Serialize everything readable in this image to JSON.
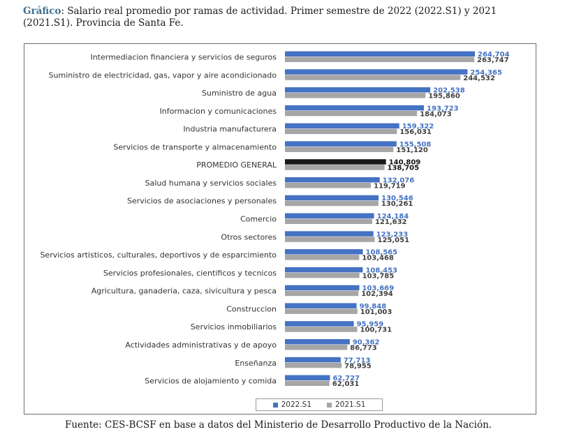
{
  "caption": {
    "lead": "Gráfico",
    "text": ": Salario real promedio por ramas de actividad. Primer semestre de 2022 (2022.S1) y 2021 (2021.S1). Provincia de Santa Fe."
  },
  "source": "Fuente: CES-BCSF en base a datos del Ministerio de Desarrollo Productivo de la Nación.",
  "legend": [
    {
      "label": "2022.S1",
      "color": "#4472c4"
    },
    {
      "label": "2021.S1",
      "color": "#a6a6a6"
    }
  ],
  "chart_data": {
    "type": "bar",
    "orientation": "horizontal",
    "title": "",
    "xlabel": "",
    "ylabel": "",
    "xlim": [
      0,
      280000
    ],
    "grid": false,
    "legend_position": "bottom",
    "highlight": "PROMEDIO GENERAL",
    "highlight_color": "#1a1a1a",
    "categories": [
      "Intermediacion financiera y servicios de seguros",
      "Suministro de electricidad, gas, vapor y aire acondicionado",
      "Suministro de agua",
      "Informacion y comunicaciones",
      "Industria manufacturera",
      "Servicios de transporte y almacenamiento",
      "PROMEDIO GENERAL",
      "Salud humana y servicios sociales",
      "Servicios de asociaciones y personales",
      "Comercio",
      "Otros sectores",
      "Servicios artisticos, culturales, deportivos y de esparcimiento",
      "Servicios profesionales, cientificos y tecnicos",
      "Agricultura, ganaderia, caza, sivicultura y pesca",
      "Construccion",
      "Servicios inmobiliarios",
      "Actividades administrativas y de apoyo",
      "Enseñanza",
      "Servicios de alojamiento y comida"
    ],
    "series": [
      {
        "name": "2022.S1",
        "color": "#4472c4",
        "values": [
          264704,
          254365,
          202538,
          193723,
          159322,
          155508,
          140809,
          132076,
          130546,
          124184,
          123233,
          108565,
          108453,
          103669,
          99848,
          95959,
          90362,
          77713,
          62727
        ],
        "labels": [
          "264,704",
          "254,365",
          "202,538",
          "193,723",
          "159,322",
          "155,508",
          "140,809",
          "132,076",
          "130,546",
          "124,184",
          "123,233",
          "108,565",
          "108,453",
          "103,669",
          "99,848",
          "95,959",
          "90,362",
          "77,713",
          "62,727"
        ]
      },
      {
        "name": "2021.S1",
        "color": "#a6a6a6",
        "values": [
          263747,
          244532,
          195860,
          184073,
          156031,
          151120,
          138705,
          119719,
          130261,
          121632,
          125051,
          103468,
          103785,
          102394,
          101003,
          100731,
          86773,
          78955,
          62031
        ],
        "labels": [
          "263,747",
          "244,532",
          "195,860",
          "184,073",
          "156,031",
          "151,120",
          "138,705",
          "119,719",
          "130,261",
          "121,632",
          "125,051",
          "103,468",
          "103,785",
          "102,394",
          "101,003",
          "100,731",
          "86,773",
          "78,955",
          "62,031"
        ]
      }
    ]
  }
}
